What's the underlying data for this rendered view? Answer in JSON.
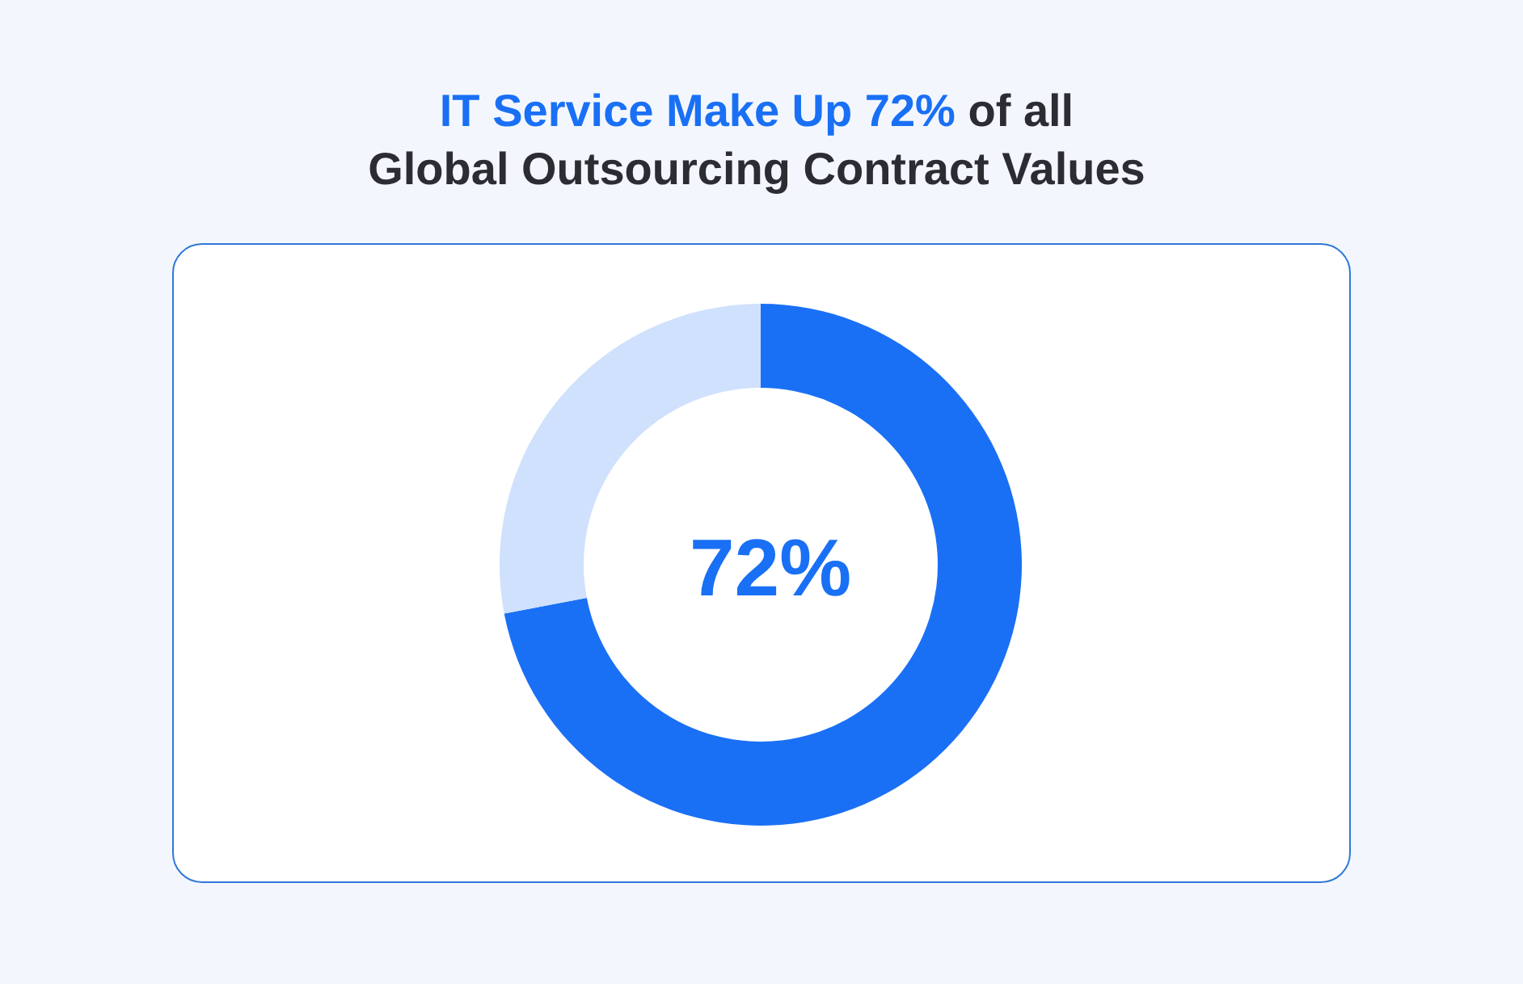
{
  "chart_data": {
    "type": "donut",
    "title": "IT Service Make Up 72% of all\nGlobal Outsourcing Contract Values",
    "categories": [
      null,
      null
    ],
    "values": [
      72,
      28
    ],
    "colors": [
      "#1a70f5",
      "#cfe1fc"
    ],
    "value_labels": [
      "72%",
      null
    ]
  }
}
